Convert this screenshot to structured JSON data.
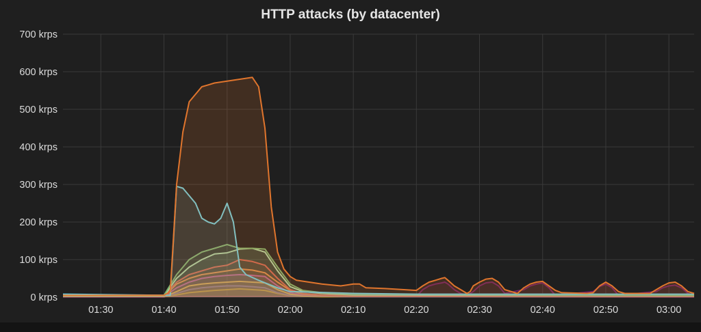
{
  "chart_data": {
    "type": "area",
    "title": "HTTP attacks (by datacenter)",
    "xlabel": "",
    "ylabel": "",
    "ylim": [
      0,
      700
    ],
    "yticks": [
      {
        "value": 0,
        "label": "0 krps"
      },
      {
        "value": 100,
        "label": "100 krps"
      },
      {
        "value": 200,
        "label": "200 krps"
      },
      {
        "value": 300,
        "label": "300 krps"
      },
      {
        "value": 400,
        "label": "400 krps"
      },
      {
        "value": 500,
        "label": "500 krps"
      },
      {
        "value": 600,
        "label": "600 krps"
      },
      {
        "value": 700,
        "label": "700 krps"
      }
    ],
    "xlim": [
      "01:24",
      "03:04"
    ],
    "xticks": [
      "01:30",
      "01:40",
      "01:50",
      "02:00",
      "02:10",
      "02:20",
      "02:30",
      "02:40",
      "02:50",
      "03:00"
    ],
    "grid": true,
    "legend": "none",
    "series": [
      {
        "color": "#e0752d",
        "x": [
          "01:24",
          "01:40",
          "01:41",
          "01:42",
          "01:43",
          "01:44",
          "01:45",
          "01:46",
          "01:47",
          "01:48",
          "01:50",
          "01:52",
          "01:54",
          "01:55",
          "01:56",
          "01:57",
          "01:58",
          "01:59",
          "02:00",
          "02:01",
          "02:03",
          "02:05",
          "02:08",
          "02:10",
          "02:11",
          "02:12",
          "02:15",
          "02:18",
          "02:20",
          "02:21",
          "02:22",
          "02:23",
          "02:24",
          "02:24.5",
          "02:25",
          "02:26",
          "02:27",
          "02:28",
          "02:28.5",
          "02:29",
          "02:30",
          "02:31",
          "02:32",
          "02:33",
          "02:34",
          "02:36",
          "02:37",
          "02:38",
          "02:39",
          "02:40",
          "02:41",
          "02:42",
          "02:43",
          "02:47",
          "02:48",
          "02:49",
          "02:50",
          "02:51",
          "02:52",
          "02:53",
          "02:57",
          "02:58",
          "02:59",
          "03:00",
          "03:01",
          "03:02",
          "03:03",
          "03:04"
        ],
        "y": [
          5,
          5,
          15,
          300,
          440,
          520,
          540,
          560,
          565,
          570,
          575,
          580,
          585,
          560,
          450,
          240,
          120,
          75,
          55,
          45,
          40,
          35,
          30,
          35,
          35,
          25,
          23,
          20,
          18,
          30,
          40,
          45,
          50,
          52,
          45,
          30,
          20,
          10,
          15,
          30,
          40,
          48,
          50,
          40,
          20,
          10,
          25,
          35,
          40,
          42,
          30,
          18,
          12,
          10,
          12,
          30,
          40,
          30,
          15,
          10,
          10,
          20,
          30,
          38,
          40,
          30,
          15,
          10
        ]
      },
      {
        "color": "#6ed0e0",
        "x": [
          "01:24",
          "01:40",
          "01:41",
          "01:42",
          "01:43",
          "01:44",
          "01:45",
          "01:46",
          "01:47",
          "01:48",
          "01:49",
          "01:50",
          "01:51",
          "01:52",
          "01:53",
          "01:55",
          "01:58",
          "02:00",
          "02:10",
          "02:20",
          "02:30",
          "02:40",
          "02:50",
          "03:00",
          "03:04"
        ],
        "y": [
          8,
          5,
          5,
          295,
          290,
          270,
          250,
          210,
          200,
          195,
          210,
          250,
          200,
          80,
          60,
          45,
          25,
          15,
          10,
          8,
          8,
          8,
          8,
          8,
          8
        ]
      },
      {
        "color": "#7eb26d",
        "x": [
          "01:24",
          "01:40",
          "01:42",
          "01:44",
          "01:46",
          "01:48",
          "01:50",
          "01:52",
          "01:54",
          "01:56",
          "01:58",
          "02:00",
          "02:02",
          "02:05",
          "02:10",
          "03:04"
        ],
        "y": [
          5,
          5,
          60,
          100,
          120,
          130,
          140,
          130,
          130,
          128,
          80,
          35,
          18,
          12,
          8,
          5
        ]
      },
      {
        "color": "#b7dbab",
        "x": [
          "01:24",
          "01:40",
          "01:42",
          "01:44",
          "01:46",
          "01:48",
          "01:50",
          "01:52",
          "01:54",
          "01:56",
          "01:58",
          "02:00",
          "02:02",
          "02:05",
          "02:10",
          "03:04"
        ],
        "y": [
          3,
          3,
          50,
          80,
          100,
          115,
          118,
          128,
          130,
          120,
          70,
          28,
          15,
          10,
          6,
          4
        ]
      },
      {
        "color": "#e24d42",
        "x": [
          "01:24",
          "01:40",
          "01:42",
          "01:44",
          "01:46",
          "01:48",
          "01:50",
          "01:52",
          "01:54",
          "01:56",
          "01:58",
          "02:00",
          "02:02",
          "02:05",
          "02:10",
          "03:04"
        ],
        "y": [
          2,
          2,
          40,
          60,
          70,
          80,
          85,
          100,
          95,
          85,
          50,
          20,
          10,
          6,
          4,
          2
        ]
      },
      {
        "color": "#ef843c",
        "x": [
          "01:24",
          "01:40",
          "01:42",
          "01:44",
          "01:46",
          "01:48",
          "01:50",
          "01:52",
          "01:54",
          "01:56",
          "01:58",
          "02:00",
          "02:02",
          "02:05",
          "02:10",
          "03:04"
        ],
        "y": [
          2,
          2,
          35,
          50,
          60,
          65,
          70,
          75,
          72,
          65,
          40,
          18,
          8,
          5,
          3,
          2
        ]
      },
      {
        "color": "#ba43a9",
        "x": [
          "01:24",
          "01:40",
          "01:42",
          "01:44",
          "01:46",
          "01:48",
          "01:50",
          "01:52",
          "01:54",
          "01:56",
          "01:58",
          "02:00",
          "02:02",
          "02:05",
          "02:10",
          "03:04"
        ],
        "y": [
          1,
          1,
          25,
          40,
          50,
          55,
          58,
          60,
          58,
          55,
          30,
          12,
          6,
          4,
          2,
          1
        ]
      },
      {
        "color": "#eab839",
        "x": [
          "01:24",
          "01:40",
          "01:42",
          "01:44",
          "01:46",
          "01:48",
          "01:50",
          "01:52",
          "01:54",
          "01:56",
          "01:58",
          "02:00",
          "02:02",
          "02:05",
          "02:10",
          "03:04"
        ],
        "y": [
          1,
          1,
          15,
          30,
          35,
          38,
          40,
          42,
          40,
          38,
          20,
          8,
          4,
          3,
          2,
          1
        ]
      },
      {
        "color": "#705da0",
        "x": [
          "01:24",
          "01:40",
          "01:42",
          "01:44",
          "01:46",
          "01:48",
          "01:50",
          "01:52",
          "01:54",
          "01:56",
          "01:58",
          "02:00",
          "02:02",
          "02:05",
          "02:10",
          "03:04"
        ],
        "y": [
          1,
          1,
          10,
          20,
          25,
          28,
          30,
          30,
          28,
          25,
          12,
          5,
          3,
          2,
          1,
          1
        ]
      },
      {
        "color": "#cca300",
        "x": [
          "01:24",
          "01:40",
          "01:42",
          "01:44",
          "01:46",
          "01:48",
          "01:50",
          "01:52",
          "01:54",
          "01:56",
          "01:58",
          "02:00",
          "02:02",
          "02:05",
          "02:10",
          "03:04"
        ],
        "y": [
          1,
          1,
          6,
          12,
          15,
          18,
          20,
          22,
          20,
          18,
          10,
          4,
          2,
          1,
          1,
          1
        ]
      },
      {
        "color": "#6d1f62",
        "x": [
          "01:24",
          "02:20",
          "02:21",
          "02:22",
          "02:23",
          "02:24",
          "02:24.5",
          "02:25",
          "02:26",
          "02:27",
          "02:28",
          "02:29",
          "02:30",
          "02:31",
          "02:32",
          "02:33",
          "02:34",
          "02:37",
          "02:38",
          "02:39",
          "02:40",
          "02:41",
          "02:42",
          "02:48",
          "02:49",
          "02:50",
          "02:51",
          "02:52",
          "02:58",
          "02:59",
          "03:00",
          "03:01",
          "03:02",
          "03:03",
          "03:04"
        ],
        "y": [
          2,
          2,
          20,
          30,
          35,
          38,
          40,
          35,
          20,
          10,
          5,
          15,
          30,
          38,
          40,
          30,
          10,
          20,
          30,
          35,
          38,
          25,
          5,
          15,
          28,
          35,
          25,
          5,
          15,
          25,
          30,
          32,
          25,
          10,
          5
        ]
      }
    ]
  }
}
